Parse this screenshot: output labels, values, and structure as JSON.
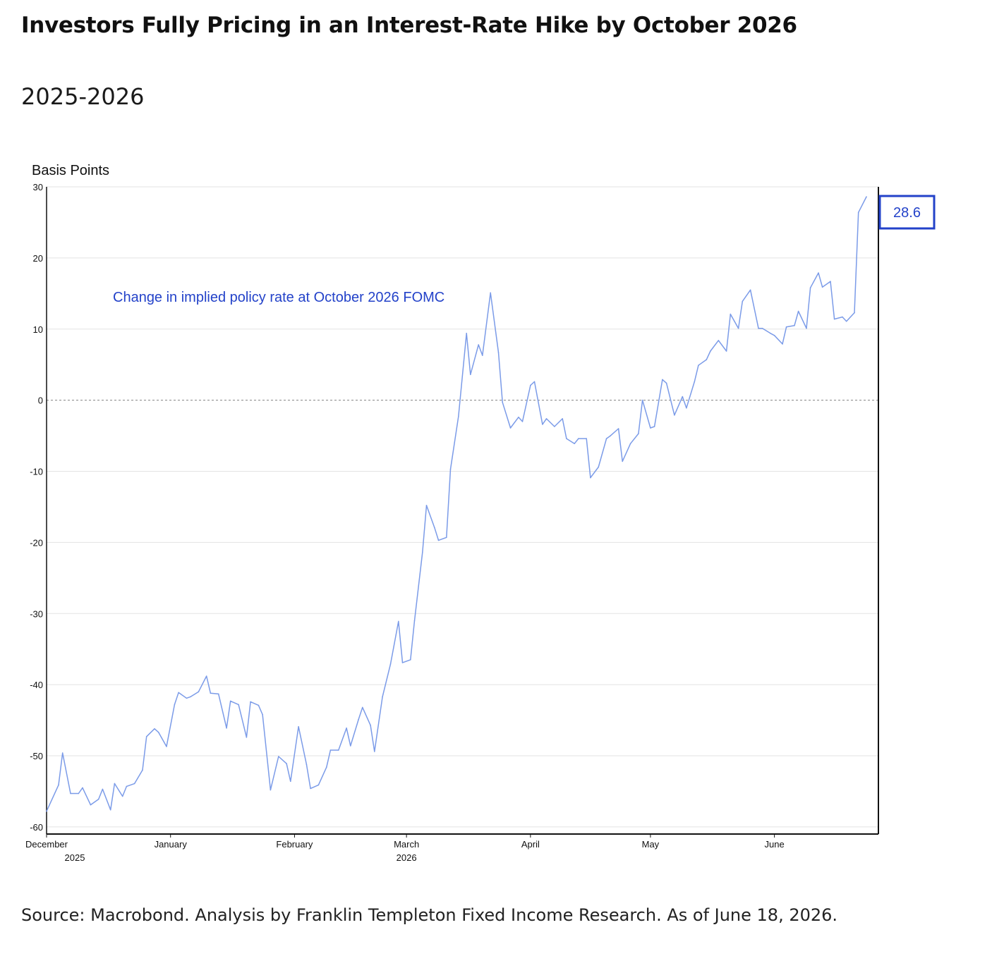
{
  "title": "Investors Fully Pricing in an Interest-Rate Hike by October 2026",
  "subtitle": "2025-2026",
  "source": "Source: Macrobond. Analysis by Franklin Templeton Fixed Income Research. As of June 18, 2026.",
  "colors": {
    "series": "#7b9be8",
    "annotation": "#2342c9",
    "value_box": "#2342c9",
    "zero_line": "#999999",
    "grid": "#e3e3e3",
    "axis": "#111111"
  },
  "chart_data": {
    "type": "line",
    "ylabel": "Basis Points",
    "ylim": [
      -61,
      30
    ],
    "yticks": [
      "30",
      "20",
      "10",
      "0",
      "-10",
      "-20",
      "-30",
      "-40",
      "-50",
      "-60"
    ],
    "ytick_values": [
      30,
      20,
      10,
      0,
      -10,
      -20,
      -30,
      -40,
      -50,
      -60
    ],
    "grid": true,
    "zero_line": "dashed",
    "xlim": [
      "2025-12-01",
      "2026-06-27"
    ],
    "xticks": [
      {
        "label": "December",
        "sublabel": "2025",
        "date": "2025-12-01"
      },
      {
        "label": "January",
        "sublabel": "",
        "date": "2026-01-01"
      },
      {
        "label": "February",
        "sublabel": "",
        "date": "2026-02-01"
      },
      {
        "label": "March",
        "sublabel": "2026",
        "date": "2026-03-01"
      },
      {
        "label": "April",
        "sublabel": "",
        "date": "2026-04-01"
      },
      {
        "label": "May",
        "sublabel": "",
        "date": "2026-05-01"
      },
      {
        "label": "June",
        "sublabel": "",
        "date": "2026-06-01"
      }
    ],
    "annotation": "Change in implied policy rate at October 2026 FOMC",
    "last_value_label": "28.6",
    "series": [
      {
        "points": [
          [
            "2025-12-01",
            -57.8
          ],
          [
            "2025-12-04",
            -54.1
          ],
          [
            "2025-12-05",
            -49.6
          ],
          [
            "2025-12-07",
            -55.3
          ],
          [
            "2025-12-09",
            -55.3
          ],
          [
            "2025-12-10",
            -54.5
          ],
          [
            "2025-12-12",
            -56.9
          ],
          [
            "2025-12-14",
            -56.1
          ],
          [
            "2025-12-15",
            -54.7
          ],
          [
            "2025-12-17",
            -57.6
          ],
          [
            "2025-12-18",
            -53.9
          ],
          [
            "2025-12-20",
            -55.7
          ],
          [
            "2025-12-21",
            -54.3
          ],
          [
            "2025-12-23",
            -53.9
          ],
          [
            "2025-12-25",
            -52.0
          ],
          [
            "2025-12-26",
            -47.3
          ],
          [
            "2025-12-28",
            -46.2
          ],
          [
            "2025-12-29",
            -46.7
          ],
          [
            "2025-12-31",
            -48.7
          ],
          [
            "2026-01-02",
            -42.8
          ],
          [
            "2026-01-03",
            -41.1
          ],
          [
            "2026-01-05",
            -41.9
          ],
          [
            "2026-01-06",
            -41.7
          ],
          [
            "2026-01-08",
            -41.0
          ],
          [
            "2026-01-10",
            -38.8
          ],
          [
            "2026-01-11",
            -41.2
          ],
          [
            "2026-01-13",
            -41.3
          ],
          [
            "2026-01-15",
            -46.1
          ],
          [
            "2026-01-16",
            -42.3
          ],
          [
            "2026-01-18",
            -42.8
          ],
          [
            "2026-01-20",
            -47.4
          ],
          [
            "2026-01-21",
            -42.4
          ],
          [
            "2026-01-23",
            -42.9
          ],
          [
            "2026-01-24",
            -44.2
          ],
          [
            "2026-01-26",
            -54.8
          ],
          [
            "2026-01-28",
            -50.1
          ],
          [
            "2026-01-30",
            -51.1
          ],
          [
            "2026-01-31",
            -53.6
          ],
          [
            "2026-02-02",
            -45.9
          ],
          [
            "2026-02-04",
            -51.2
          ],
          [
            "2026-02-05",
            -54.6
          ],
          [
            "2026-02-07",
            -54.1
          ],
          [
            "2026-02-09",
            -51.6
          ],
          [
            "2026-02-10",
            -49.2
          ],
          [
            "2026-02-12",
            -49.2
          ],
          [
            "2026-02-14",
            -46.1
          ],
          [
            "2026-02-15",
            -48.6
          ],
          [
            "2026-02-17",
            -44.9
          ],
          [
            "2026-02-18",
            -43.2
          ],
          [
            "2026-02-20",
            -45.7
          ],
          [
            "2026-02-21",
            -49.4
          ],
          [
            "2026-02-23",
            -41.7
          ],
          [
            "2026-02-25",
            -37.1
          ],
          [
            "2026-02-27",
            -31.1
          ],
          [
            "2026-02-28",
            -36.9
          ],
          [
            "2026-03-02",
            -36.5
          ],
          [
            "2026-03-03",
            -31.0
          ],
          [
            "2026-03-05",
            -21.4
          ],
          [
            "2026-03-06",
            -14.8
          ],
          [
            "2026-03-08",
            -17.9
          ],
          [
            "2026-03-09",
            -19.7
          ],
          [
            "2026-03-11",
            -19.3
          ],
          [
            "2026-03-12",
            -9.7
          ],
          [
            "2026-03-14",
            -2.3
          ],
          [
            "2026-03-16",
            9.4
          ],
          [
            "2026-03-17",
            3.6
          ],
          [
            "2026-03-19",
            7.8
          ],
          [
            "2026-03-20",
            6.3
          ],
          [
            "2026-03-22",
            15.1
          ],
          [
            "2026-03-24",
            6.7
          ],
          [
            "2026-03-25",
            -0.3
          ],
          [
            "2026-03-27",
            -3.9
          ],
          [
            "2026-03-29",
            -2.4
          ],
          [
            "2026-03-30",
            -3.0
          ],
          [
            "2026-04-01",
            2.1
          ],
          [
            "2026-04-02",
            2.6
          ],
          [
            "2026-04-04",
            -3.4
          ],
          [
            "2026-04-05",
            -2.6
          ],
          [
            "2026-04-07",
            -3.7
          ],
          [
            "2026-04-09",
            -2.6
          ],
          [
            "2026-04-10",
            -5.4
          ],
          [
            "2026-04-12",
            -6.1
          ],
          [
            "2026-04-13",
            -5.4
          ],
          [
            "2026-04-15",
            -5.4
          ],
          [
            "2026-04-16",
            -10.9
          ],
          [
            "2026-04-18",
            -9.4
          ],
          [
            "2026-04-20",
            -5.4
          ],
          [
            "2026-04-21",
            -5.0
          ],
          [
            "2026-04-23",
            -4.0
          ],
          [
            "2026-04-24",
            -8.6
          ],
          [
            "2026-04-26",
            -6.1
          ],
          [
            "2026-04-28",
            -4.7
          ],
          [
            "2026-04-29",
            0.0
          ],
          [
            "2026-05-01",
            -3.9
          ],
          [
            "2026-05-02",
            -3.7
          ],
          [
            "2026-05-04",
            2.9
          ],
          [
            "2026-05-05",
            2.4
          ],
          [
            "2026-05-07",
            -2.1
          ],
          [
            "2026-05-09",
            0.5
          ],
          [
            "2026-05-10",
            -1.1
          ],
          [
            "2026-05-12",
            2.6
          ],
          [
            "2026-05-13",
            4.9
          ],
          [
            "2026-05-15",
            5.7
          ],
          [
            "2026-05-16",
            6.9
          ],
          [
            "2026-05-18",
            8.4
          ],
          [
            "2026-05-20",
            6.9
          ],
          [
            "2026-05-21",
            12.1
          ],
          [
            "2026-05-23",
            10.1
          ],
          [
            "2026-05-24",
            13.9
          ],
          [
            "2026-05-26",
            15.5
          ],
          [
            "2026-05-28",
            10.1
          ],
          [
            "2026-05-29",
            10.1
          ],
          [
            "2026-05-31",
            9.4
          ],
          [
            "2026-06-01",
            9.1
          ],
          [
            "2026-06-03",
            7.9
          ],
          [
            "2026-06-04",
            10.3
          ],
          [
            "2026-06-06",
            10.5
          ],
          [
            "2026-06-07",
            12.5
          ],
          [
            "2026-06-09",
            10.1
          ],
          [
            "2026-06-10",
            15.8
          ],
          [
            "2026-06-12",
            17.9
          ],
          [
            "2026-06-13",
            15.9
          ],
          [
            "2026-06-15",
            16.7
          ],
          [
            "2026-06-16",
            11.4
          ],
          [
            "2026-06-18",
            11.7
          ],
          [
            "2026-06-19",
            11.1
          ],
          [
            "2026-06-21",
            12.3
          ],
          [
            "2026-06-22",
            26.4
          ],
          [
            "2026-06-24",
            28.6
          ]
        ]
      }
    ]
  }
}
